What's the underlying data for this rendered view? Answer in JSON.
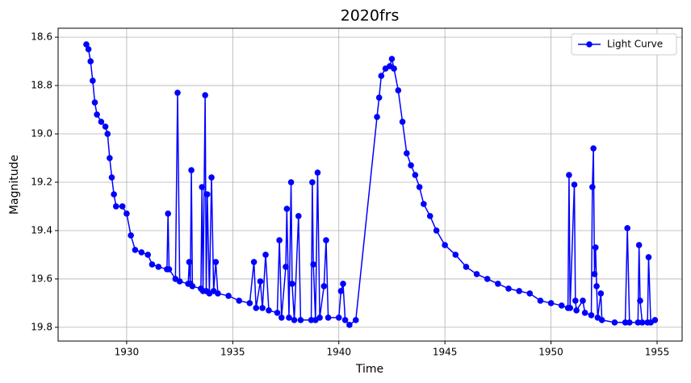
{
  "chart_data": {
    "type": "line",
    "title": "2020frs",
    "x_label": "Time",
    "y_label": "Magnitude",
    "xlim": [
      1926.77,
      1956.18
    ],
    "ylim": [
      18.563,
      19.857
    ],
    "invert_y": true,
    "xticks": [
      1930,
      1935,
      1940,
      1945,
      1950,
      1955
    ],
    "yticks": [
      18.6,
      18.8,
      {
        "value": 19,
        "label": "19.0"
      },
      19.2,
      19.4,
      19.6,
      19.8
    ],
    "grid": true,
    "legend": "upper right",
    "x": [
      1928.1,
      1928.2,
      1928.3,
      1928.4,
      1928.5,
      1928.6,
      1928.8,
      1929.0,
      1929.1,
      1929.2,
      1929.3,
      1929.4,
      1929.5,
      1929.8,
      1930.0,
      1930.2,
      1930.4,
      1930.7,
      1931.0,
      1931.2,
      1931.5,
      1931.9,
      1931.95,
      1932.0,
      1932.3,
      1932.4,
      1932.5,
      1932.9,
      1932.95,
      1933.0,
      1933.05,
      1933.1,
      1933.5,
      1933.55,
      1933.6,
      1933.7,
      1933.75,
      1933.8,
      1933.9,
      1934.0,
      1934.1,
      1934.2,
      1934.3,
      1934.8,
      1935.3,
      1935.8,
      1936.0,
      1936.1,
      1936.3,
      1936.4,
      1936.55,
      1936.7,
      1937.1,
      1937.2,
      1937.3,
      1937.5,
      1937.55,
      1937.65,
      1937.75,
      1937.8,
      1937.9,
      1938.1,
      1938.2,
      1938.7,
      1938.75,
      1938.8,
      1938.9,
      1939.0,
      1939.1,
      1939.3,
      1939.4,
      1939.5,
      1940.0,
      1940.1,
      1940.2,
      1940.3,
      1940.5,
      1940.8,
      1941.8,
      1941.9,
      1942.0,
      1942.2,
      1942.4,
      1942.5,
      1942.6,
      1942.8,
      1943.0,
      1943.2,
      1943.4,
      1943.6,
      1943.8,
      1944.0,
      1944.3,
      1944.6,
      1945.0,
      1945.5,
      1946.0,
      1946.5,
      1947.0,
      1947.5,
      1948.0,
      1948.5,
      1949.0,
      1949.5,
      1950.0,
      1950.5,
      1950.8,
      1950.85,
      1950.9,
      1951.1,
      1951.15,
      1951.2,
      1951.5,
      1951.6,
      1951.9,
      1951.95,
      1952.0,
      1952.05,
      1952.1,
      1952.15,
      1952.2,
      1952.35,
      1952.4,
      1953.0,
      1953.5,
      1953.6,
      1953.7,
      1954.1,
      1954.15,
      1954.2,
      1954.3,
      1954.55,
      1954.6,
      1954.7,
      1954.9
    ],
    "series": [
      {
        "name": "Light Curve",
        "color": "#0000ff",
        "values": [
          18.63,
          18.65,
          18.7,
          18.78,
          18.87,
          18.92,
          18.95,
          18.97,
          19.0,
          19.1,
          19.18,
          19.25,
          19.3,
          19.3,
          19.33,
          19.42,
          19.48,
          19.49,
          19.5,
          19.54,
          19.55,
          19.56,
          19.33,
          19.56,
          19.6,
          18.83,
          19.61,
          19.62,
          19.53,
          19.62,
          19.15,
          19.63,
          19.64,
          19.22,
          19.65,
          18.84,
          19.65,
          19.25,
          19.66,
          19.18,
          19.65,
          19.53,
          19.66,
          19.67,
          19.69,
          19.7,
          19.53,
          19.72,
          19.61,
          19.72,
          19.5,
          19.73,
          19.74,
          19.44,
          19.76,
          19.55,
          19.31,
          19.76,
          19.2,
          19.62,
          19.77,
          19.34,
          19.77,
          19.77,
          19.2,
          19.54,
          19.77,
          19.16,
          19.76,
          19.63,
          19.44,
          19.76,
          19.76,
          19.65,
          19.62,
          19.77,
          19.79,
          19.77,
          18.93,
          18.85,
          18.76,
          18.73,
          18.72,
          18.69,
          18.73,
          18.82,
          18.95,
          19.08,
          19.13,
          19.17,
          19.22,
          19.29,
          19.34,
          19.4,
          19.46,
          19.5,
          19.55,
          19.58,
          19.6,
          19.62,
          19.64,
          19.65,
          19.66,
          19.69,
          19.7,
          19.71,
          19.72,
          19.17,
          19.72,
          19.21,
          19.69,
          19.73,
          19.69,
          19.74,
          19.75,
          19.22,
          19.06,
          19.58,
          19.47,
          19.63,
          19.76,
          19.66,
          19.77,
          19.78,
          19.78,
          19.39,
          19.78,
          19.78,
          19.46,
          19.69,
          19.78,
          19.78,
          19.51,
          19.78,
          19.77
        ]
      }
    ]
  }
}
